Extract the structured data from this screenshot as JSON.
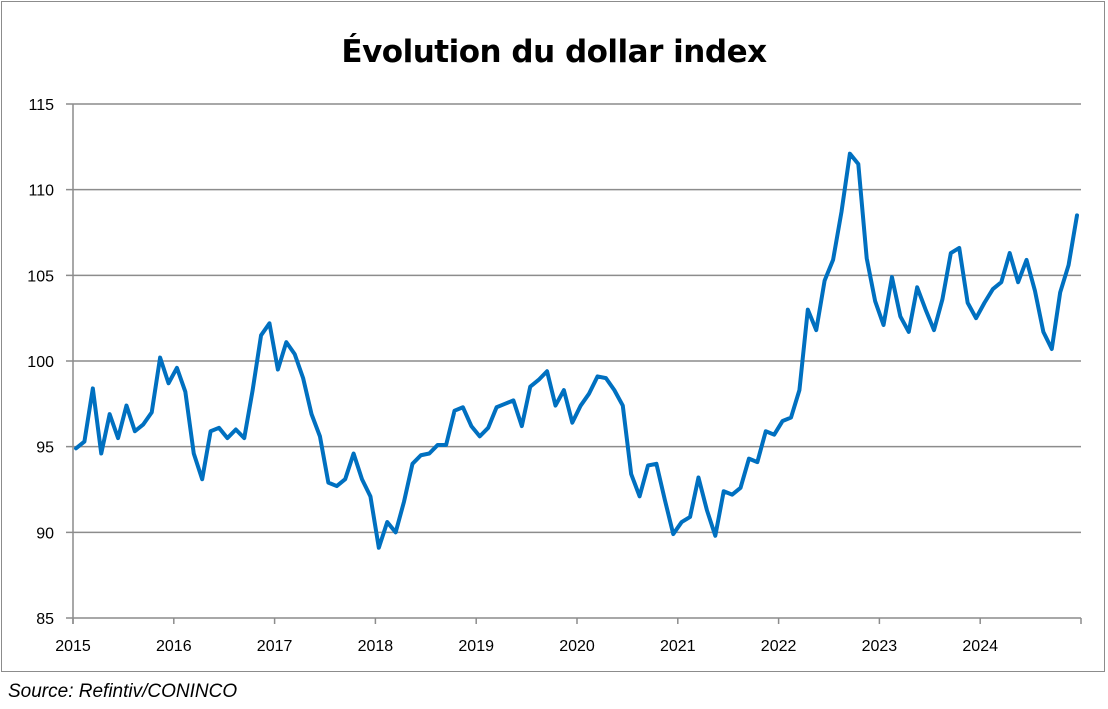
{
  "chart_data": {
    "type": "line",
    "title": "Évolution du dollar index",
    "xlabel": "",
    "ylabel": "",
    "ylim": [
      85,
      115
    ],
    "yticks": [
      "85",
      "90",
      "95",
      "100",
      "105",
      "110",
      "115"
    ],
    "xticks": [
      "2015",
      "2016",
      "2017",
      "2018",
      "2019",
      "2020",
      "2021",
      "2022",
      "2023",
      "2024"
    ],
    "xrange": [
      2015,
      2025
    ],
    "grid": true,
    "legend": "none",
    "line_color": "#0070c0",
    "series": [
      {
        "name": "Dollar index",
        "start": "2015-01",
        "frequency": "monthly",
        "values": [
          94.9,
          95.3,
          98.4,
          94.6,
          96.9,
          95.5,
          97.4,
          95.9,
          96.3,
          97.0,
          100.2,
          98.7,
          99.6,
          98.2,
          94.6,
          93.1,
          95.9,
          96.1,
          95.5,
          96.0,
          95.5,
          98.3,
          101.5,
          102.2,
          99.5,
          101.1,
          100.4,
          99.0,
          96.9,
          95.6,
          92.9,
          92.7,
          93.1,
          94.6,
          93.1,
          92.1,
          89.1,
          90.6,
          90.0,
          91.8,
          94.0,
          94.5,
          94.6,
          95.1,
          95.1,
          97.1,
          97.3,
          96.2,
          95.6,
          96.1,
          97.3,
          97.5,
          97.7,
          96.2,
          98.5,
          98.9,
          99.4,
          97.4,
          98.3,
          96.4,
          97.4,
          98.1,
          99.1,
          99.0,
          98.3,
          97.4,
          93.4,
          92.1,
          93.9,
          94.0,
          91.9,
          89.9,
          90.6,
          90.9,
          93.2,
          91.3,
          89.8,
          92.4,
          92.2,
          92.6,
          94.3,
          94.1,
          95.9,
          95.7,
          96.5,
          96.7,
          98.3,
          103.0,
          101.8,
          104.7,
          105.9,
          108.7,
          112.1,
          111.5,
          106.0,
          103.5,
          102.1,
          104.9,
          102.6,
          101.7,
          104.3,
          103.0,
          101.8,
          103.6,
          106.3,
          106.6,
          103.4,
          102.5,
          103.4,
          104.2,
          104.6,
          106.3,
          104.6,
          105.9,
          104.1,
          101.7,
          100.7,
          104.0,
          105.6,
          108.5
        ]
      }
    ]
  },
  "source": "Source: Refintiv/CONINCO"
}
